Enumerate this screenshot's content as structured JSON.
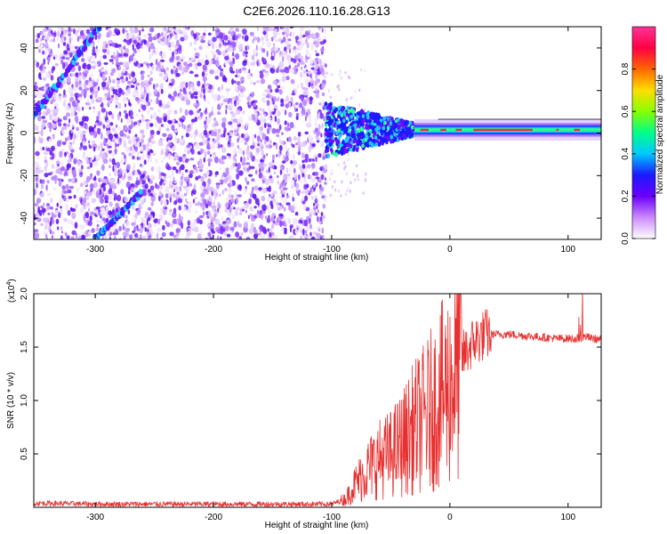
{
  "title": "C2E6.2026.110.16.28.G13",
  "colors": {
    "snr_line": "#e83030",
    "spectrogram_scatter": "#6a1fe0",
    "background": "#ffffff"
  },
  "chart_data": [
    {
      "type": "heatmap",
      "name": "spectrogram",
      "xlabel": "Height of straight line (km)",
      "ylabel": "Frequency (Hz)",
      "xlim": [
        -352,
        128
      ],
      "ylim": [
        -50,
        50
      ],
      "x_ticks": [
        -300,
        -200,
        -100,
        0,
        100
      ],
      "y_ticks": [
        -40,
        -20,
        0,
        20,
        40
      ],
      "x_tick_labels": [
        "-300",
        "-200",
        "-100",
        "0",
        "100"
      ],
      "y_tick_labels": [
        "-40",
        "-20",
        "0",
        "20",
        "40"
      ],
      "carrier_frequency_hz": 1.5,
      "noise_region_end_km": -105,
      "ridges": [
        {
          "x_start": -352,
          "x_end": -297,
          "f_start": 8,
          "f_end": 50
        },
        {
          "x_start": -300,
          "x_end": -262,
          "f_start": -50,
          "f_end": -28
        }
      ],
      "colorbar": {
        "label": "Normalized spectral amplitude",
        "range": [
          0,
          1
        ],
        "ticks": [
          0.0,
          0.2,
          0.4,
          0.6,
          0.8
        ],
        "tick_labels": [
          "0.0",
          "0.2",
          "0.4",
          "0.6",
          "0.8"
        ],
        "stops": [
          "#ffffff",
          "#cc88ff",
          "#6a00ff",
          "#1a1aff",
          "#00c8ff",
          "#00ff88",
          "#88ff00",
          "#ffdd00",
          "#ff6600",
          "#ff0044",
          "#ff3399"
        ]
      }
    },
    {
      "type": "line",
      "name": "snr",
      "xlabel": "Height of straight line (km)",
      "ylabel": "SNR (10 * v/v)",
      "scale_label": "(x10",
      "scale_exponent": "4",
      "scale_close": ")",
      "xlim": [
        -352,
        128
      ],
      "ylim": [
        0,
        2.0
      ],
      "x_ticks": [
        -300,
        -200,
        -100,
        0,
        100
      ],
      "x_tick_labels": [
        "-300",
        "-200",
        "-100",
        "0",
        "100"
      ],
      "y_ticks": [
        0.5,
        1.0,
        1.5,
        2.0
      ],
      "y_tick_labels": [
        "0.5",
        "1.0",
        "1.5",
        "2.0"
      ],
      "series": [
        {
          "name": "SNR",
          "x": [
            -352,
            -300,
            -250,
            -200,
            -150,
            -100,
            -88,
            -80,
            -70,
            -60,
            -50,
            -40,
            -30,
            -20,
            -10,
            0,
            10,
            20,
            30,
            40,
            50,
            70,
            90,
            100,
            110,
            115,
            120,
            128
          ],
          "y": [
            0.04,
            0.03,
            0.03,
            0.03,
            0.03,
            0.03,
            0.08,
            0.22,
            0.35,
            0.45,
            0.5,
            0.6,
            0.75,
            0.85,
            1.0,
            1.15,
            1.4,
            1.55,
            1.62,
            1.62,
            1.62,
            1.6,
            1.58,
            1.58,
            1.58,
            1.6,
            1.58,
            1.57
          ]
        }
      ]
    }
  ]
}
